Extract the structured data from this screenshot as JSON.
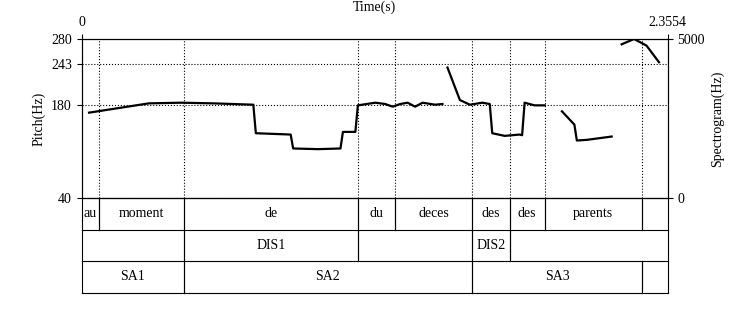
{
  "chart_data": {
    "type": "line",
    "xlabel": "Time(s)",
    "ylabel": "Pitch(Hz)",
    "y2label": "Spectrogram(Hz)",
    "xlim": [
      0,
      2.3554
    ],
    "xticks": [
      0,
      2.3554
    ],
    "ylim": [
      40,
      280
    ],
    "yticks": [
      40,
      180,
      243,
      280
    ],
    "y2lim": [
      0,
      5000
    ],
    "y2ticks": [
      0,
      5000
    ],
    "grid": true,
    "x": [
      0.03,
      0.15,
      0.27,
      0.4,
      0.53,
      0.69,
      0.7,
      0.84,
      0.85,
      0.95,
      1.04,
      1.05,
      1.1,
      1.11,
      1.18,
      1.22,
      1.25,
      1.28,
      1.31,
      1.34,
      1.37,
      1.42,
      1.45,
      1.46,
      1.47,
      1.52,
      1.56,
      1.61,
      1.64,
      1.65,
      1.7,
      1.76,
      1.77,
      1.78,
      1.82,
      1.86,
      1.9,
      1.93,
      1.98,
      1.99,
      2.03,
      2.13,
      2.15,
      2.17,
      2.22,
      2.27,
      2.32
    ],
    "series": [
      {
        "name": "Pitch",
        "color": "#000000",
        "line_style": "solid",
        "values": [
          169,
          176,
          183,
          184,
          183,
          181,
          138,
          136,
          115,
          114,
          115,
          140,
          140,
          180,
          184,
          182,
          178,
          182,
          184,
          178,
          184,
          181,
          182,
          null,
          237,
          188,
          181,
          184,
          182,
          138,
          134,
          136,
          135,
          184,
          180,
          180,
          null,
          171,
          151,
          127,
          128,
          133,
          null,
          272,
          280,
          270,
          245
        ]
      }
    ],
    "tiers": [
      {
        "intervals": [
          {
            "start": 0,
            "end": 0.07,
            "text": "au"
          },
          {
            "start": 0.07,
            "end": 0.41,
            "text": "moment"
          },
          {
            "start": 0.41,
            "end": 1.11,
            "text": "de"
          },
          {
            "start": 1.11,
            "end": 1.26,
            "text": "du"
          },
          {
            "start": 1.26,
            "end": 1.57,
            "text": "deces"
          },
          {
            "start": 1.57,
            "end": 1.72,
            "text": "des"
          },
          {
            "start": 1.72,
            "end": 1.86,
            "text": "des"
          },
          {
            "start": 1.86,
            "end": 2.25,
            "text": "parents"
          },
          {
            "start": 2.25,
            "end": 2.3554,
            "text": null
          }
        ]
      },
      {
        "intervals": [
          {
            "start": 0,
            "end": 0.41,
            "text": null
          },
          {
            "start": 0.41,
            "end": 1.11,
            "text": "DIS1"
          },
          {
            "start": 1.11,
            "end": 1.57,
            "text": null
          },
          {
            "start": 1.57,
            "end": 1.72,
            "text": "DIS2"
          },
          {
            "start": 1.72,
            "end": 2.3554,
            "text": null
          }
        ]
      },
      {
        "intervals": [
          {
            "start": 0,
            "end": 0.41,
            "text": "SA1"
          },
          {
            "start": 0.41,
            "end": 1.57,
            "text": "SA2"
          },
          {
            "start": 1.57,
            "end": 2.25,
            "text": "SA3"
          },
          {
            "start": 2.25,
            "end": 2.3554,
            "text": null
          }
        ]
      }
    ]
  }
}
